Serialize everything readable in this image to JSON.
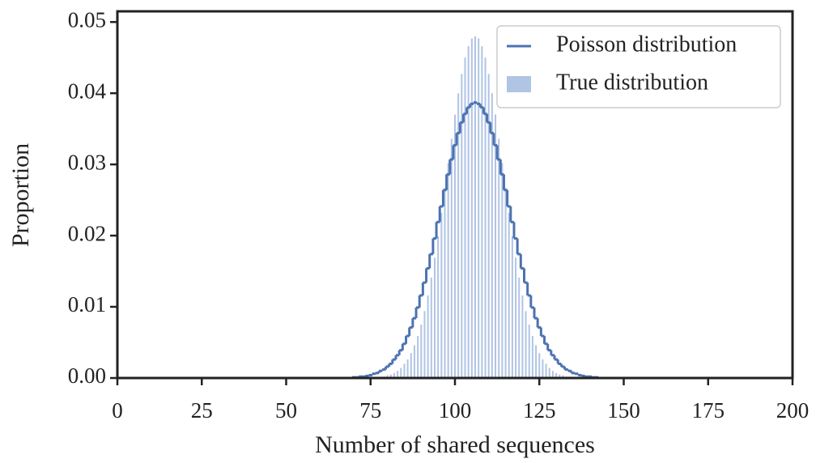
{
  "chart_data": {
    "type": "histogram",
    "xlabel": "Number of shared sequences",
    "ylabel": "Proportion",
    "x": [
      70,
      71,
      72,
      73,
      74,
      75,
      76,
      77,
      78,
      79,
      80,
      81,
      82,
      83,
      84,
      85,
      86,
      87,
      88,
      89,
      90,
      91,
      92,
      93,
      94,
      95,
      96,
      97,
      98,
      99,
      100,
      101,
      102,
      103,
      104,
      105,
      106,
      107,
      108,
      109,
      110,
      111,
      112,
      113,
      114,
      115,
      116,
      117,
      118,
      119,
      120,
      121,
      122,
      123,
      124,
      125,
      126,
      127,
      128,
      129,
      130,
      131,
      132,
      133,
      134,
      135,
      136,
      137,
      138,
      139,
      140,
      141,
      142
    ],
    "series": [
      {
        "name": "Poisson distribution",
        "kind": "step",
        "color": "#4c72b0",
        "values": [
          0.0001,
          0.0001,
          0.0002,
          0.0002,
          0.0003,
          0.0004,
          0.0006,
          0.0007,
          0.001,
          0.0012,
          0.0016,
          0.002,
          0.0026,
          0.0032,
          0.0039,
          0.0048,
          0.0059,
          0.0071,
          0.0084,
          0.0099,
          0.0116,
          0.0134,
          0.0154,
          0.0174,
          0.0196,
          0.0219,
          0.0241,
          0.0264,
          0.0286,
          0.0307,
          0.0327,
          0.0344,
          0.0359,
          0.0371,
          0.038,
          0.0385,
          0.0387,
          0.0385,
          0.038,
          0.0371,
          0.0359,
          0.0344,
          0.0327,
          0.0307,
          0.0286,
          0.0264,
          0.0241,
          0.0219,
          0.0196,
          0.0174,
          0.0154,
          0.0134,
          0.0116,
          0.0099,
          0.0084,
          0.0071,
          0.0059,
          0.0048,
          0.0039,
          0.0032,
          0.0026,
          0.002,
          0.0016,
          0.0012,
          0.001,
          0.0007,
          0.0006,
          0.0004,
          0.0003,
          0.0002,
          0.0002,
          0.0001,
          0.0001
        ]
      },
      {
        "name": "True distribution",
        "kind": "bar",
        "color": "#b0c4e4",
        "values": [
          0,
          0,
          0,
          0,
          0,
          0.0001,
          0.0001,
          0.0001,
          0.0002,
          0.0002,
          0.0004,
          0.0005,
          0.0007,
          0.001,
          0.0014,
          0.002,
          0.0026,
          0.0035,
          0.0046,
          0.0059,
          0.0075,
          0.0094,
          0.0116,
          0.0141,
          0.0169,
          0.0199,
          0.0232,
          0.0267,
          0.0302,
          0.0336,
          0.037,
          0.04,
          0.0427,
          0.045,
          0.0466,
          0.0477,
          0.048,
          0.0477,
          0.0466,
          0.045,
          0.0427,
          0.04,
          0.037,
          0.0336,
          0.0302,
          0.0267,
          0.0232,
          0.0199,
          0.0169,
          0.0141,
          0.0116,
          0.0094,
          0.0075,
          0.0059,
          0.0046,
          0.0035,
          0.0026,
          0.002,
          0.0014,
          0.001,
          0.0007,
          0.0005,
          0.0004,
          0.0002,
          0.0002,
          0.0001,
          0.0001,
          0.0001,
          0,
          0,
          0,
          0,
          0
        ]
      }
    ],
    "xlim": [
      0,
      200
    ],
    "xticks": [
      0,
      25,
      50,
      75,
      100,
      125,
      150,
      175,
      200
    ],
    "ylim": [
      0,
      0.0515
    ],
    "yticks": [
      {
        "value": 0,
        "label": "0.00"
      },
      0.01,
      0.02,
      0.03,
      0.04,
      0.05
    ],
    "legend": "upper right"
  }
}
